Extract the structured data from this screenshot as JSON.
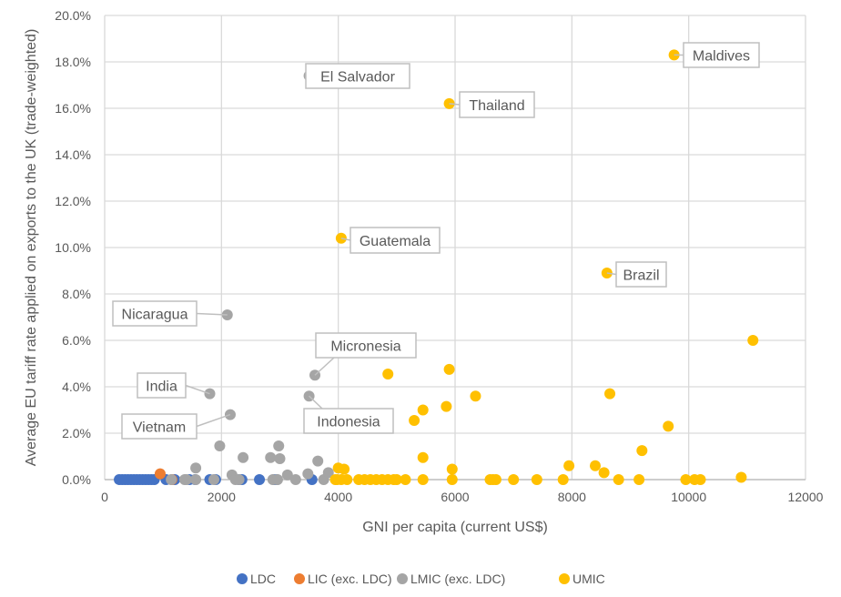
{
  "chart_data": {
    "type": "scatter",
    "xlabel": "GNI per capita (current US$)",
    "ylabel": "Average EU tariff rate applied on exports to the UK (trade-weighted)",
    "xlim": [
      0,
      12000
    ],
    "ylim": [
      0,
      20
    ],
    "x_ticks": [
      "0",
      "2000",
      "4000",
      "6000",
      "8000",
      "10000",
      "12000"
    ],
    "y_ticks": [
      "0.0%",
      "2.0%",
      "4.0%",
      "6.0%",
      "8.0%",
      "10.0%",
      "12.0%",
      "14.0%",
      "16.0%",
      "18.0%",
      "20.0%"
    ],
    "grid": true,
    "legend_position": "bottom",
    "series": [
      {
        "name": "LDC",
        "color": "#4472C4",
        "points": [
          [
            250,
            0
          ],
          [
            300,
            0
          ],
          [
            350,
            0
          ],
          [
            400,
            0
          ],
          [
            450,
            0
          ],
          [
            500,
            0
          ],
          [
            550,
            0
          ],
          [
            600,
            0
          ],
          [
            650,
            0
          ],
          [
            700,
            0
          ],
          [
            750,
            0
          ],
          [
            800,
            0
          ],
          [
            850,
            0
          ],
          [
            1050,
            0
          ],
          [
            1200,
            0
          ],
          [
            1450,
            0
          ],
          [
            1550,
            0
          ],
          [
            1800,
            0
          ],
          [
            1900,
            0
          ],
          [
            2300,
            0
          ],
          [
            2350,
            0
          ],
          [
            2650,
            0
          ],
          [
            2900,
            0
          ],
          [
            2950,
            0
          ],
          [
            3550,
            0
          ]
        ]
      },
      {
        "name": "LIC (exc. LDC)",
        "color": "#ED7D31",
        "points": [
          [
            950,
            0.25
          ],
          [
            1150,
            0
          ]
        ]
      },
      {
        "name": "LMIC (exc. LDC)",
        "color": "#A5A5A5",
        "points": [
          [
            3500,
            17.4
          ],
          [
            2100,
            7.1
          ],
          [
            3600,
            4.5
          ],
          [
            1800,
            3.7
          ],
          [
            3500,
            3.6
          ],
          [
            2150,
            2.8
          ],
          [
            1970,
            1.45
          ],
          [
            1560,
            0.5
          ],
          [
            2370,
            0.95
          ],
          [
            2840,
            0.95
          ],
          [
            2980,
            1.45
          ],
          [
            3000,
            0.9
          ],
          [
            3650,
            0.8
          ],
          [
            3130,
            0.2
          ],
          [
            2180,
            0.2
          ],
          [
            2240,
            0
          ],
          [
            3270,
            0
          ],
          [
            3480,
            0.25
          ],
          [
            3750,
            0
          ],
          [
            3830,
            0.3
          ],
          [
            1140,
            0
          ],
          [
            1370,
            0
          ],
          [
            1400,
            0
          ],
          [
            1560,
            0
          ],
          [
            1870,
            0
          ],
          [
            2300,
            0
          ],
          [
            2880,
            0
          ],
          [
            2960,
            0
          ]
        ]
      },
      {
        "name": "UMIC",
        "color": "#FFC000",
        "points": [
          [
            9750,
            18.3
          ],
          [
            5900,
            16.2
          ],
          [
            4050,
            10.4
          ],
          [
            8600,
            8.9
          ],
          [
            11100,
            6.0
          ],
          [
            4850,
            4.55
          ],
          [
            5900,
            4.75
          ],
          [
            6350,
            3.6
          ],
          [
            8650,
            3.7
          ],
          [
            5450,
            3.0
          ],
          [
            5300,
            2.55
          ],
          [
            5850,
            3.15
          ],
          [
            9650,
            2.3
          ],
          [
            9200,
            1.25
          ],
          [
            5450,
            0.95
          ],
          [
            5950,
            0.45
          ],
          [
            7950,
            0.6
          ],
          [
            8400,
            0.6
          ],
          [
            8550,
            0.3
          ],
          [
            4000,
            0.5
          ],
          [
            4100,
            0.45
          ],
          [
            10900,
            0.1
          ],
          [
            3950,
            0
          ],
          [
            3980,
            0
          ],
          [
            4050,
            0
          ],
          [
            4150,
            0
          ],
          [
            4350,
            0
          ],
          [
            4450,
            0
          ],
          [
            4550,
            0
          ],
          [
            4650,
            0
          ],
          [
            4750,
            0
          ],
          [
            4850,
            0
          ],
          [
            4950,
            0
          ],
          [
            5000,
            0
          ],
          [
            5150,
            0
          ],
          [
            5450,
            0
          ],
          [
            5950,
            0
          ],
          [
            6600,
            0
          ],
          [
            6650,
            0
          ],
          [
            6700,
            0
          ],
          [
            7000,
            0
          ],
          [
            7400,
            0
          ],
          [
            7850,
            0
          ],
          [
            8800,
            0
          ],
          [
            9150,
            0
          ],
          [
            9950,
            0
          ],
          [
            10100,
            0
          ],
          [
            10200,
            0
          ]
        ]
      }
    ],
    "annotations": [
      {
        "text": "El Salvador",
        "x": 3500,
        "y": 17.4
      },
      {
        "text": "Thailand",
        "x": 5900,
        "y": 16.2
      },
      {
        "text": "Guatemala",
        "x": 4050,
        "y": 10.4
      },
      {
        "text": "Maldives",
        "x": 9750,
        "y": 18.3
      },
      {
        "text": "Brazil",
        "x": 8600,
        "y": 8.9
      },
      {
        "text": "Nicaragua",
        "x": 2100,
        "y": 7.1
      },
      {
        "text": "Micronesia",
        "x": 3600,
        "y": 4.5
      },
      {
        "text": "India",
        "x": 1800,
        "y": 3.7
      },
      {
        "text": "Indonesia",
        "x": 3500,
        "y": 3.6
      },
      {
        "text": "Vietnam",
        "x": 2150,
        "y": 2.8
      }
    ]
  }
}
